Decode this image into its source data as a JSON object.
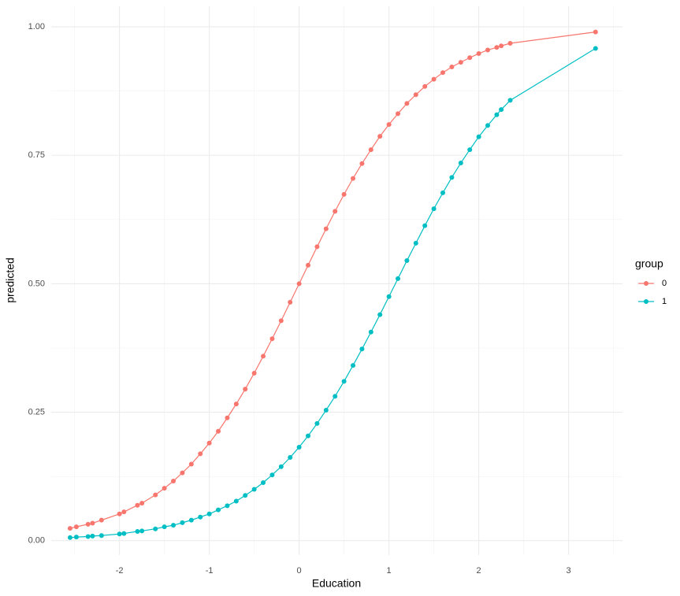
{
  "chart_data": {
    "type": "line",
    "x_label": "Education",
    "y_label": "predicted",
    "legend_title": "group",
    "legend": "right",
    "grid": true,
    "x": [
      -2.55,
      -2.48,
      -2.35,
      -2.3,
      -2.2,
      -2.0,
      -1.95,
      -1.8,
      -1.75,
      -1.6,
      -1.5,
      -1.4,
      -1.3,
      -1.2,
      -1.1,
      -1.0,
      -0.9,
      -0.8,
      -0.7,
      -0.6,
      -0.5,
      -0.4,
      -0.3,
      -0.2,
      -0.1,
      0,
      0.1,
      0.2,
      0.3,
      0.4,
      0.5,
      0.6,
      0.7,
      0.8,
      0.9,
      1.0,
      1.1,
      1.2,
      1.3,
      1.4,
      1.5,
      1.6,
      1.7,
      1.8,
      1.9,
      2.0,
      2.1,
      2.2,
      2.25,
      2.35,
      3.3
    ],
    "series": [
      {
        "name": "0",
        "color": "#F8766D",
        "values": [
          0.024,
          0.027,
          0.032,
          0.034,
          0.04,
          0.052,
          0.056,
          0.069,
          0.073,
          0.089,
          0.102,
          0.116,
          0.132,
          0.149,
          0.169,
          0.19,
          0.213,
          0.239,
          0.266,
          0.295,
          0.326,
          0.359,
          0.393,
          0.428,
          0.464,
          0.5,
          0.536,
          0.572,
          0.607,
          0.641,
          0.674,
          0.705,
          0.734,
          0.761,
          0.787,
          0.81,
          0.831,
          0.851,
          0.868,
          0.884,
          0.898,
          0.911,
          0.922,
          0.931,
          0.94,
          0.948,
          0.955,
          0.96,
          0.963,
          0.968,
          0.99
        ]
      },
      {
        "name": "1",
        "color": "#00BFC4",
        "values": [
          0.006,
          0.007,
          0.008,
          0.009,
          0.01,
          0.013,
          0.014,
          0.018,
          0.019,
          0.023,
          0.027,
          0.03,
          0.035,
          0.04,
          0.046,
          0.052,
          0.06,
          0.068,
          0.077,
          0.088,
          0.1,
          0.113,
          0.128,
          0.144,
          0.162,
          0.182,
          0.204,
          0.228,
          0.254,
          0.281,
          0.31,
          0.341,
          0.373,
          0.406,
          0.44,
          0.475,
          0.51,
          0.545,
          0.579,
          0.613,
          0.646,
          0.677,
          0.707,
          0.735,
          0.761,
          0.786,
          0.808,
          0.829,
          0.839,
          0.857,
          0.958
        ]
      }
    ],
    "xlim": [
      -2.76,
      3.6
    ],
    "xticks": [
      -2,
      -1,
      0,
      1,
      2,
      3
    ],
    "ylim": [
      -0.028,
      1.04
    ],
    "yticks": [
      {
        "value": 0,
        "label": "0.00"
      },
      {
        "value": 0.25,
        "label": "0.25"
      },
      {
        "value": 0.5,
        "label": "0.50"
      },
      {
        "value": 0.75,
        "label": "0.75"
      },
      {
        "value": 1,
        "label": "1.00"
      }
    ]
  }
}
